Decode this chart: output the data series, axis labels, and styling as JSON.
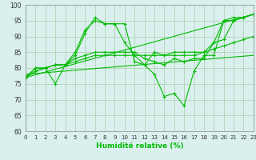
{
  "xlabel": "Humidité relative (%)",
  "background_color": "#daf0ee",
  "grid_color": "#aaccaa",
  "line_color": "#00bb00",
  "ylim": [
    60,
    100
  ],
  "xlim": [
    0,
    23
  ],
  "yticks": [
    60,
    65,
    70,
    75,
    80,
    85,
    90,
    95,
    100
  ],
  "xticks": [
    0,
    1,
    2,
    3,
    4,
    5,
    6,
    7,
    8,
    9,
    10,
    11,
    12,
    13,
    14,
    15,
    16,
    17,
    18,
    19,
    20,
    21,
    22,
    23
  ],
  "series": [
    [
      77,
      80,
      80,
      81,
      81,
      85,
      92,
      95,
      94,
      94,
      88,
      84,
      81,
      85,
      84,
      85,
      85,
      85,
      85,
      88,
      95,
      95,
      96,
      97
    ],
    [
      77,
      80,
      80,
      81,
      81,
      84,
      91,
      96,
      94,
      94,
      94,
      82,
      81,
      78,
      71,
      72,
      68,
      79,
      84,
      84,
      95,
      96,
      96,
      97
    ],
    [
      77,
      79,
      80,
      75,
      81,
      83,
      84,
      85,
      85,
      85,
      85,
      85,
      83,
      82,
      81,
      83,
      82,
      83,
      83,
      88,
      89,
      95,
      96,
      97
    ],
    [
      77,
      79,
      80,
      81,
      81,
      82,
      83,
      84,
      84,
      84,
      84,
      84,
      84,
      84,
      84,
      84,
      84,
      84,
      85,
      86,
      87,
      88,
      89,
      90
    ]
  ],
  "linear_series": [
    {
      "x0": 0,
      "y0": 77,
      "x1": 23,
      "y1": 97
    },
    {
      "x0": 0,
      "y0": 78,
      "x1": 23,
      "y1": 84
    }
  ]
}
